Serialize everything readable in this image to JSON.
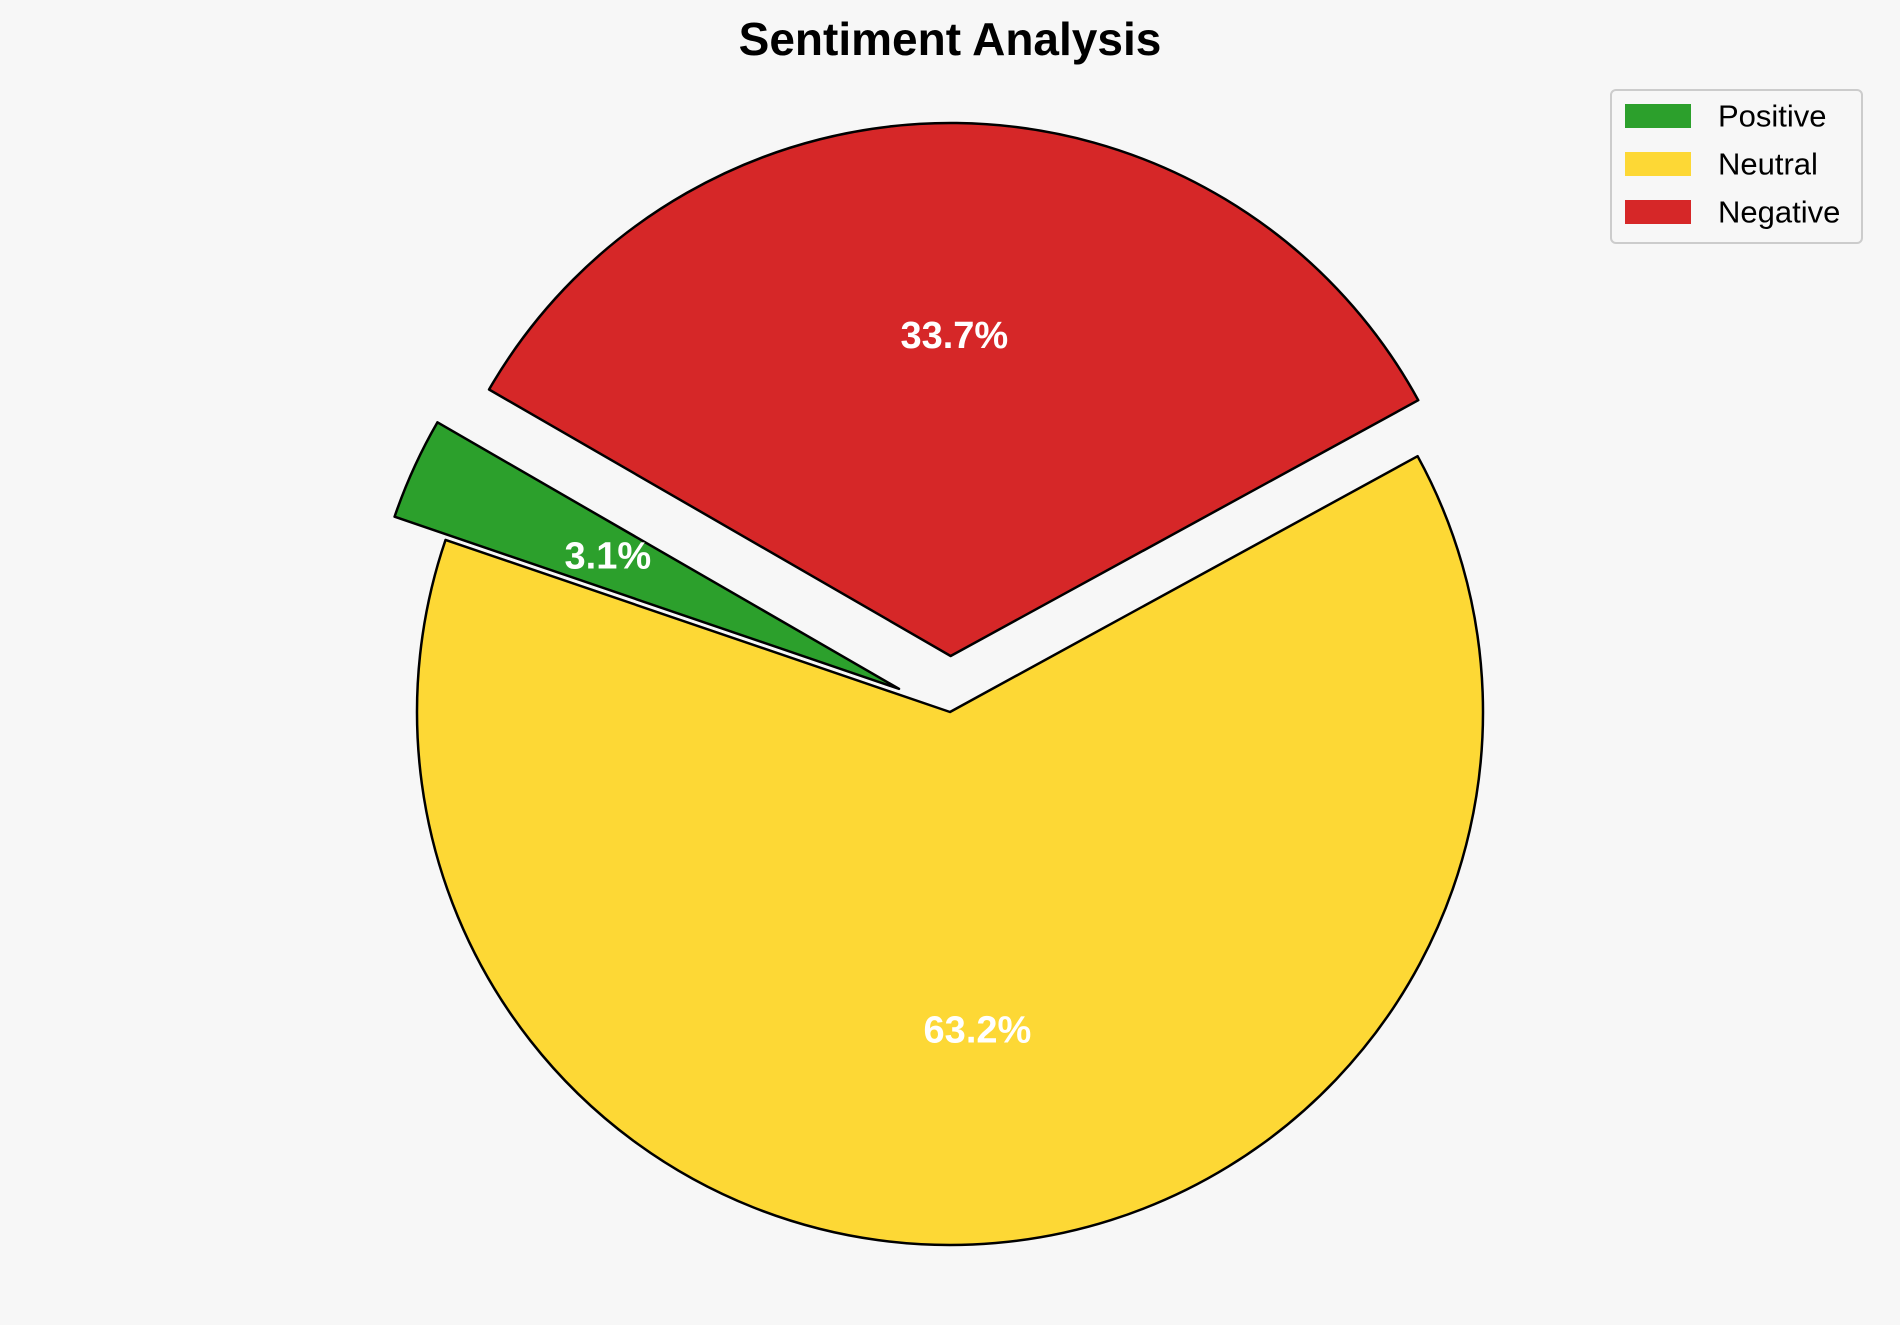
{
  "chart_data": {
    "type": "pie",
    "title": "Sentiment Analysis",
    "labels": [
      "Positive",
      "Neutral",
      "Negative"
    ],
    "values": [
      3.1,
      63.2,
      33.7
    ],
    "value_labels": [
      "3.1%",
      "63.2%",
      "33.7%"
    ],
    "colors": [
      "#2ca02c",
      "#fdd835",
      "#d62728"
    ],
    "exploded": [
      true,
      false,
      true
    ],
    "start_angle_deg": 150,
    "direction": "counterclockwise",
    "legend": {
      "position": "top-right",
      "entries": [
        "Positive",
        "Neutral",
        "Negative"
      ]
    }
  }
}
